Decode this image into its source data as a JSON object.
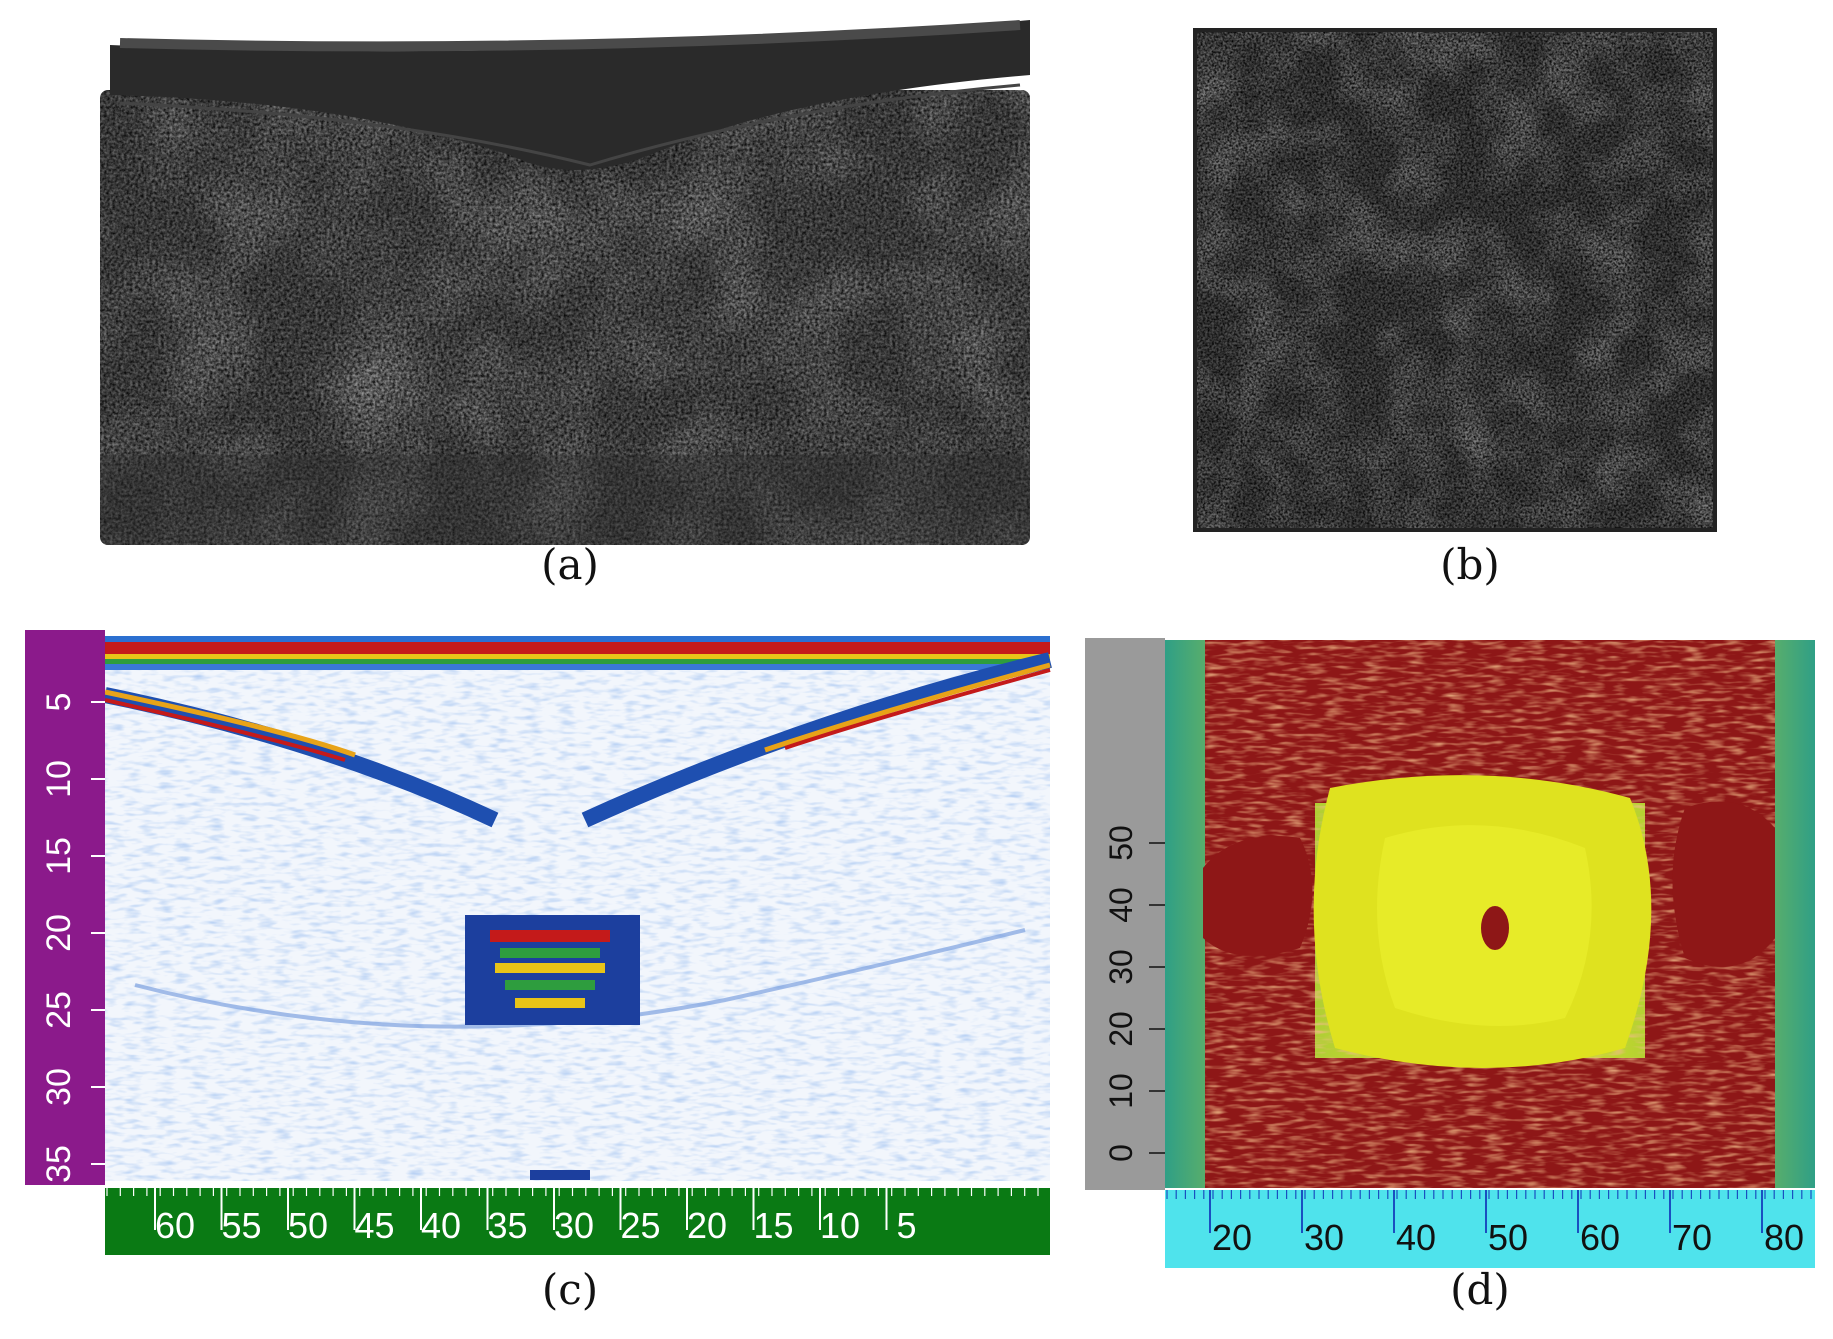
{
  "captions": {
    "a": "(a)",
    "b": "(b)",
    "c": "(c)",
    "d": "(d)"
  },
  "panel_c": {
    "y_ticks": [
      "5",
      "10",
      "15",
      "20",
      "25",
      "30",
      "35"
    ],
    "x_ticks": [
      "60",
      "55",
      "50",
      "45",
      "40",
      "35",
      "30",
      "25",
      "20",
      "15",
      "10",
      "5"
    ],
    "y_axis_color": "#8b1a8b",
    "x_axis_color": "#0a7a14"
  },
  "panel_d": {
    "y_ticks": [
      "0",
      "10",
      "20",
      "30",
      "40",
      "50"
    ],
    "x_ticks": [
      "20",
      "30",
      "40",
      "50",
      "60",
      "70",
      "80"
    ],
    "y_axis_color": "#9a9a9a",
    "x_axis_color": "#4fe3ec"
  }
}
